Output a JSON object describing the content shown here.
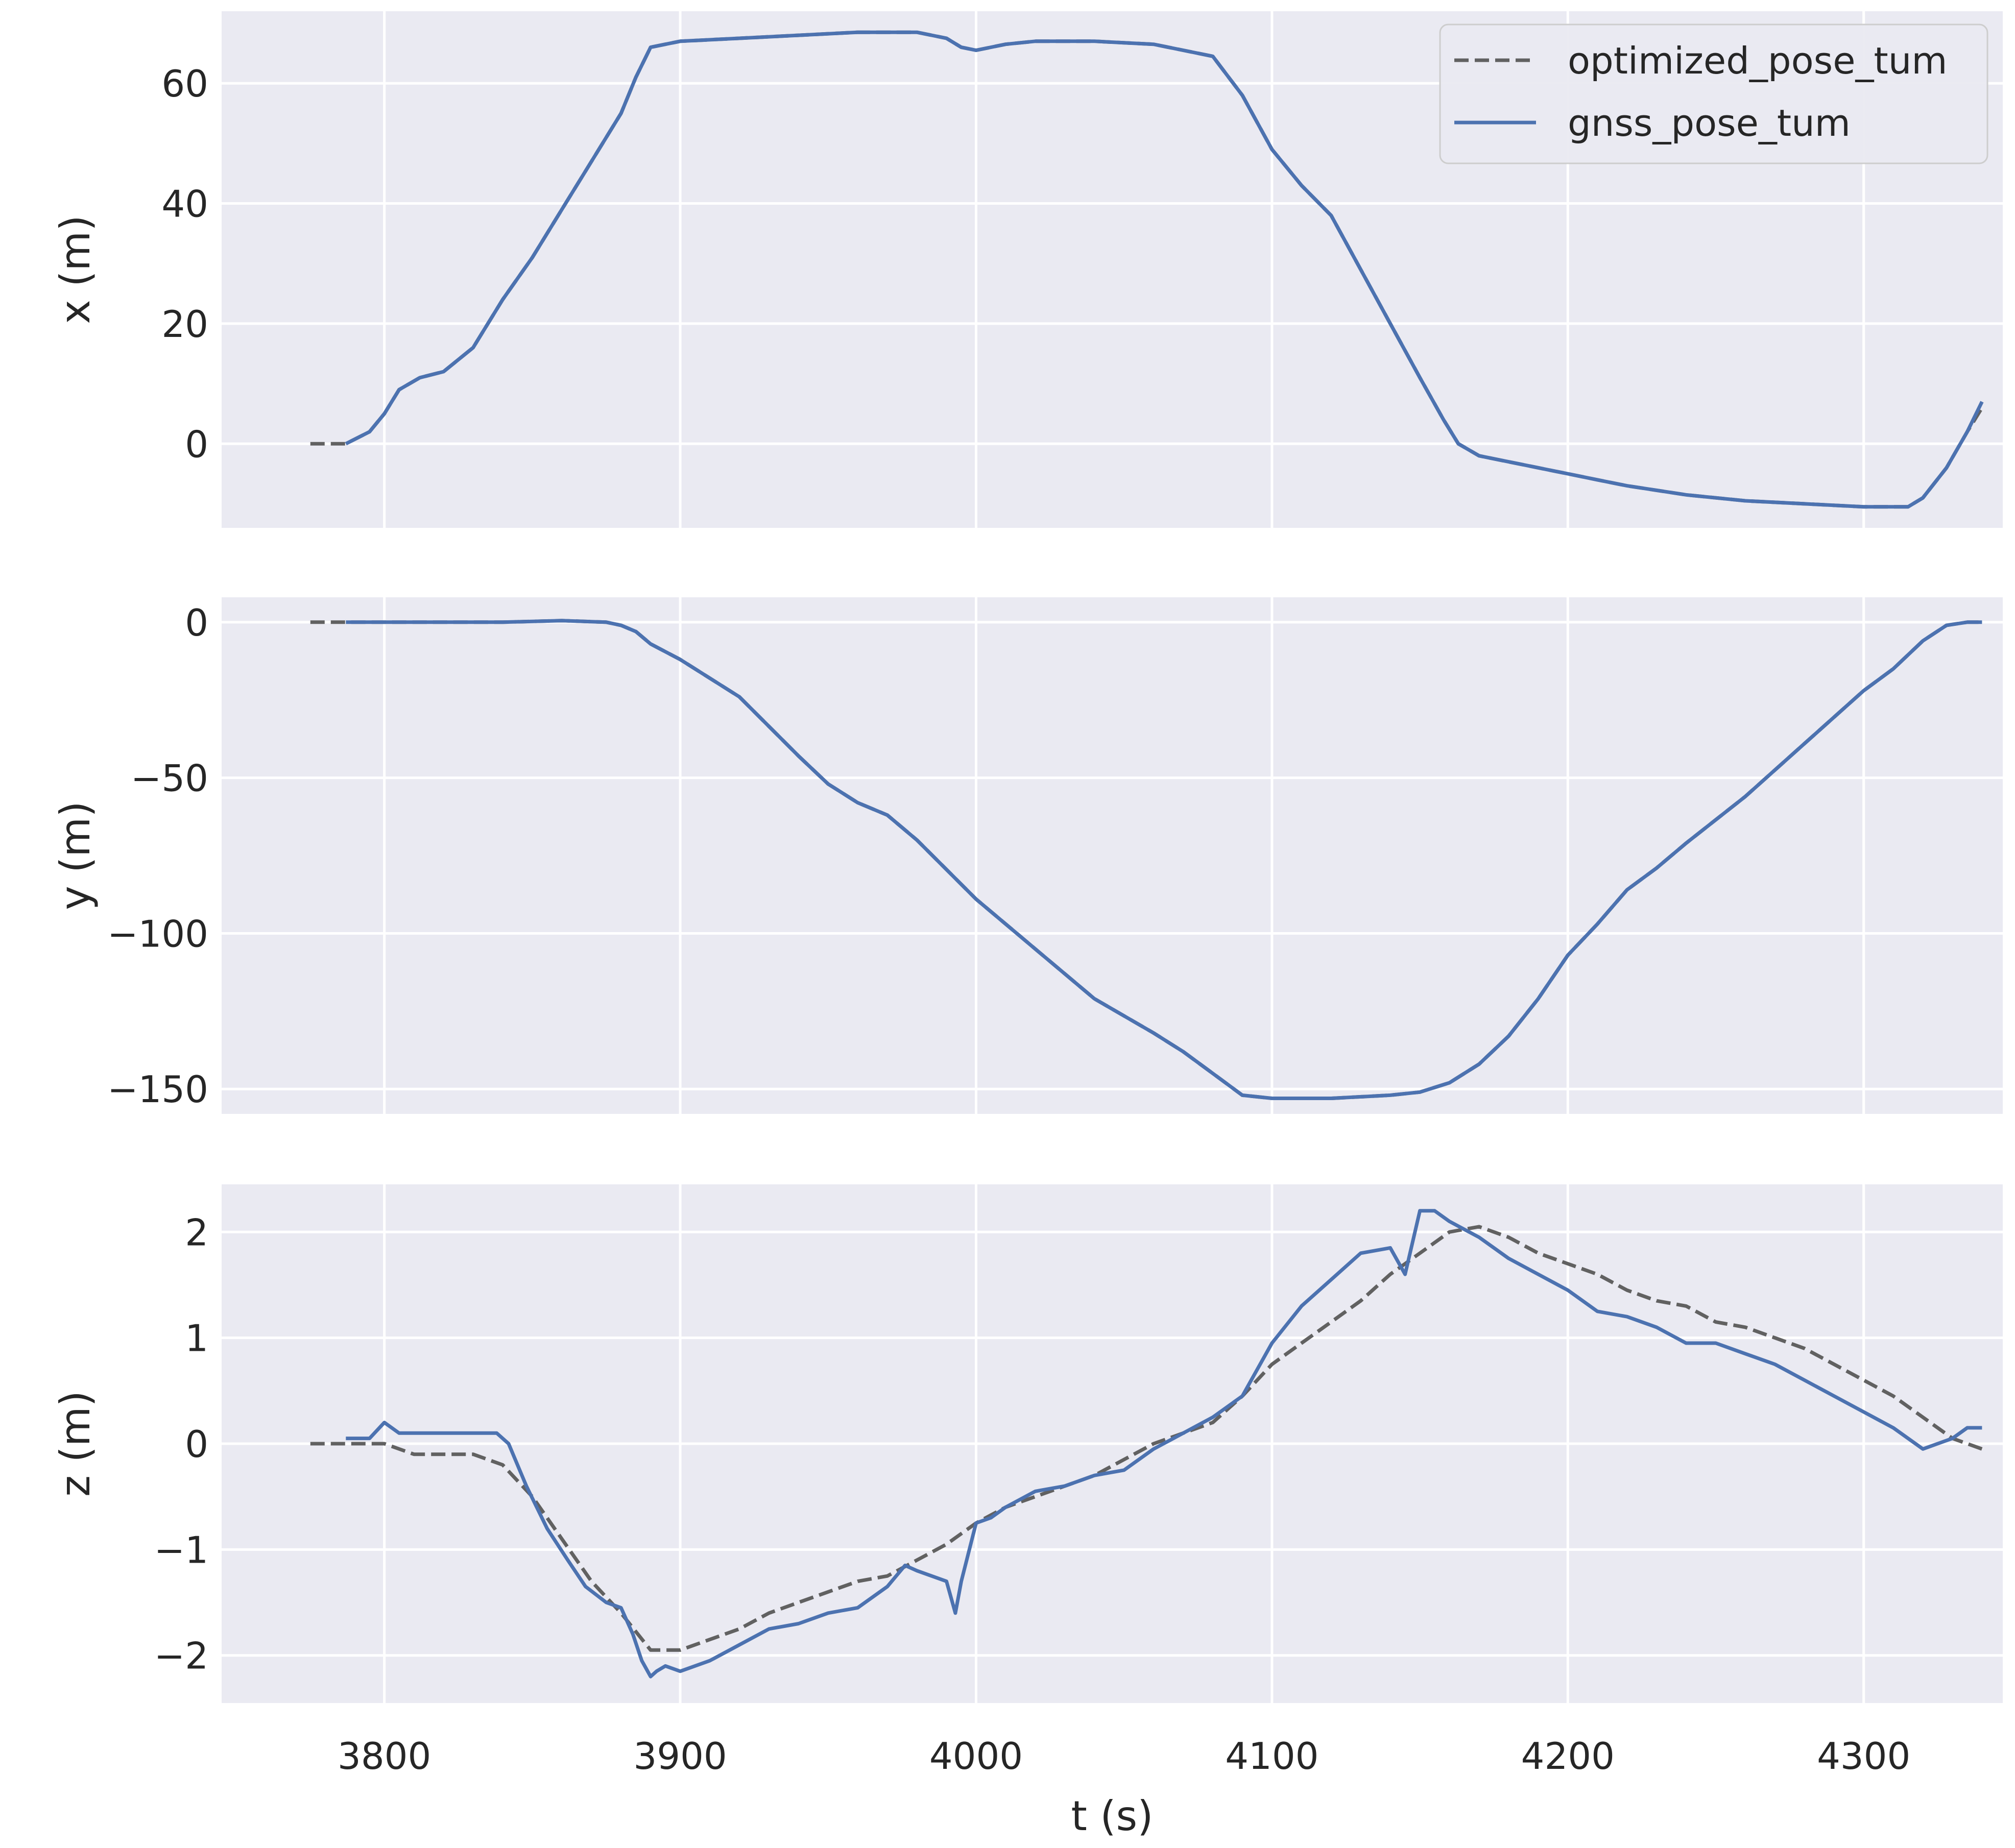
{
  "chart_data": {
    "type": "line",
    "xlabel": "t (s)",
    "xlim": [
      3745,
      4347
    ],
    "xticks": [
      3800,
      3900,
      4000,
      4100,
      4200,
      4300
    ],
    "grid": true,
    "legend": {
      "placement": "top-right",
      "panel": 0
    },
    "series_styles": [
      {
        "name": "optimized_pose_tum",
        "color": "#616161",
        "dash": "dashed"
      },
      {
        "name": "gnss_pose_tum",
        "color": "#4c72b0",
        "dash": "solid"
      }
    ],
    "panels": [
      {
        "ylabel": "x (m)",
        "ylim": [
          -14,
          72
        ],
        "yticks": [
          0,
          20,
          40,
          60
        ],
        "series": [
          {
            "name": "optimized_pose_tum",
            "x": [
              3775,
              3787,
              3795,
              3800,
              3805,
              3812,
              3820,
              3830,
              3840,
              3850,
              3860,
              3870,
              3880,
              3885,
              3890,
              3900,
              3920,
              3940,
              3960,
              3980,
              3990,
              3995,
              4000,
              4010,
              4020,
              4040,
              4060,
              4070,
              4080,
              4090,
              4100,
              4110,
              4120,
              4130,
              4140,
              4150,
              4158,
              4163,
              4170,
              4180,
              4190,
              4200,
              4210,
              4220,
              4240,
              4250,
              4260,
              4280,
              4300,
              4315,
              4320,
              4328,
              4335,
              4340
            ],
            "y": [
              0,
              0,
              2,
              5,
              9,
              11,
              12,
              16,
              24,
              31,
              39,
              47,
              55,
              61,
              66,
              67,
              67.5,
              68,
              68.5,
              68.5,
              67.5,
              66,
              65.5,
              66.5,
              67,
              67,
              66.5,
              65.5,
              64.5,
              58,
              49,
              43,
              38,
              29,
              20,
              11,
              4,
              0,
              -2,
              -3,
              -4,
              -5,
              -6,
              -7,
              -8.5,
              -9,
              -9.5,
              -10,
              -10.5,
              -10.5,
              -9,
              -4,
              2,
              6
            ]
          },
          {
            "name": "gnss_pose_tum",
            "x": [
              3787,
              3795,
              3800,
              3805,
              3812,
              3820,
              3830,
              3840,
              3850,
              3860,
              3870,
              3880,
              3885,
              3890,
              3900,
              3920,
              3940,
              3960,
              3980,
              3990,
              3995,
              4000,
              4010,
              4020,
              4040,
              4060,
              4070,
              4080,
              4090,
              4100,
              4110,
              4120,
              4130,
              4140,
              4150,
              4158,
              4163,
              4170,
              4180,
              4190,
              4200,
              4210,
              4220,
              4240,
              4250,
              4260,
              4280,
              4300,
              4315,
              4320,
              4328,
              4335,
              4340
            ],
            "y": [
              0,
              2,
              5,
              9,
              11,
              12,
              16,
              24,
              31,
              39,
              47,
              55,
              61,
              66,
              67,
              67.5,
              68,
              68.5,
              68.5,
              67.5,
              66,
              65.5,
              66.5,
              67,
              67,
              66.5,
              65.5,
              64.5,
              58,
              49,
              43,
              38,
              29,
              20,
              11,
              4,
              0,
              -2,
              -3,
              -4,
              -5,
              -6,
              -7,
              -8.5,
              -9,
              -9.5,
              -10,
              -10.5,
              -10.5,
              -9,
              -4,
              2,
              7
            ]
          }
        ]
      },
      {
        "ylabel": "y (m)",
        "ylim": [
          -158,
          8
        ],
        "yticks": [
          0,
          -50,
          -100,
          -150
        ],
        "series": [
          {
            "name": "optimized_pose_tum",
            "x": [
              3775,
              3787,
              3800,
              3820,
              3840,
              3860,
              3875,
              3880,
              3885,
              3890,
              3900,
              3920,
              3940,
              3950,
              3960,
              3970,
              3980,
              4000,
              4020,
              4040,
              4060,
              4070,
              4080,
              4090,
              4100,
              4120,
              4140,
              4150,
              4160,
              4170,
              4180,
              4190,
              4200,
              4210,
              4220,
              4230,
              4240,
              4260,
              4280,
              4300,
              4310,
              4320,
              4328,
              4335,
              4340
            ],
            "y": [
              0,
              0,
              0,
              0,
              0,
              0.5,
              0,
              -1,
              -3,
              -7,
              -12,
              -24,
              -43,
              -52,
              -58,
              -62,
              -70,
              -89,
              -105,
              -121,
              -132,
              -138,
              -145,
              -152,
              -153,
              -153,
              -152,
              -151,
              -148,
              -142,
              -133,
              -121,
              -107,
              -97,
              -86,
              -79,
              -71,
              -56,
              -39,
              -22,
              -15,
              -6,
              -1,
              0,
              0
            ]
          },
          {
            "name": "gnss_pose_tum",
            "x": [
              3787,
              3800,
              3820,
              3840,
              3860,
              3875,
              3880,
              3885,
              3890,
              3900,
              3920,
              3940,
              3950,
              3960,
              3970,
              3980,
              4000,
              4020,
              4040,
              4060,
              4070,
              4080,
              4090,
              4100,
              4120,
              4140,
              4150,
              4160,
              4170,
              4180,
              4190,
              4200,
              4210,
              4220,
              4230,
              4240,
              4260,
              4280,
              4300,
              4310,
              4320,
              4328,
              4335,
              4340
            ],
            "y": [
              0,
              0,
              0,
              0,
              0.5,
              0,
              -1,
              -3,
              -7,
              -12,
              -24,
              -43,
              -52,
              -58,
              -62,
              -70,
              -89,
              -105,
              -121,
              -132,
              -138,
              -145,
              -152,
              -153,
              -153,
              -152,
              -151,
              -148,
              -142,
              -133,
              -121,
              -107,
              -97,
              -86,
              -79,
              -71,
              -56,
              -39,
              -22,
              -15,
              -6,
              -1,
              0,
              0
            ]
          }
        ]
      },
      {
        "ylabel": "z (m)",
        "ylim": [
          -2.45,
          2.45
        ],
        "yticks": [
          2,
          1,
          0,
          -1,
          -2
        ],
        "series": [
          {
            "name": "optimized_pose_tum",
            "x": [
              3775,
              3790,
              3800,
              3810,
              3820,
              3830,
              3840,
              3850,
              3860,
              3870,
              3880,
              3890,
              3900,
              3910,
              3920,
              3930,
              3940,
              3950,
              3960,
              3970,
              3980,
              3990,
              4000,
              4010,
              4020,
              4040,
              4050,
              4060,
              4070,
              4080,
              4090,
              4100,
              4110,
              4120,
              4130,
              4140,
              4150,
              4160,
              4170,
              4180,
              4190,
              4200,
              4210,
              4220,
              4230,
              4240,
              4250,
              4260,
              4270,
              4280,
              4290,
              4300,
              4310,
              4320,
              4330,
              4340
            ],
            "y": [
              0,
              0,
              0,
              -0.1,
              -0.1,
              -0.1,
              -0.2,
              -0.5,
              -0.9,
              -1.3,
              -1.6,
              -1.95,
              -1.95,
              -1.85,
              -1.75,
              -1.6,
              -1.5,
              -1.4,
              -1.3,
              -1.25,
              -1.1,
              -0.95,
              -0.75,
              -0.6,
              -0.5,
              -0.3,
              -0.15,
              0,
              0.1,
              0.2,
              0.45,
              0.75,
              0.95,
              1.15,
              1.35,
              1.6,
              1.8,
              2.0,
              2.05,
              1.95,
              1.8,
              1.7,
              1.6,
              1.45,
              1.35,
              1.3,
              1.15,
              1.1,
              1.0,
              0.9,
              0.75,
              0.6,
              0.45,
              0.25,
              0.05,
              -0.05
            ]
          },
          {
            "name": "gnss_pose_tum",
            "x": [
              3787,
              3795,
              3800,
              3805,
              3810,
              3820,
              3830,
              3838,
              3842,
              3848,
              3855,
              3862,
              3868,
              3875,
              3880,
              3884,
              3887,
              3890,
              3892,
              3895,
              3900,
              3910,
              3920,
              3930,
              3940,
              3950,
              3960,
              3970,
              3976,
              3980,
              3990,
              3993,
              3995,
              4000,
              4005,
              4010,
              4020,
              4030,
              4040,
              4050,
              4060,
              4070,
              4080,
              4090,
              4100,
              4110,
              4120,
              4130,
              4140,
              4145,
              4150,
              4155,
              4160,
              4170,
              4180,
              4190,
              4200,
              4210,
              4220,
              4230,
              4240,
              4250,
              4260,
              4270,
              4280,
              4290,
              4300,
              4310,
              4320,
              4325,
              4330,
              4335,
              4340
            ],
            "y": [
              0.05,
              0.05,
              0.2,
              0.1,
              0.1,
              0.1,
              0.1,
              0.1,
              0,
              -0.4,
              -0.8,
              -1.1,
              -1.35,
              -1.5,
              -1.55,
              -1.8,
              -2.05,
              -2.2,
              -2.15,
              -2.1,
              -2.15,
              -2.05,
              -1.9,
              -1.75,
              -1.7,
              -1.6,
              -1.55,
              -1.35,
              -1.15,
              -1.2,
              -1.3,
              -1.6,
              -1.3,
              -0.75,
              -0.7,
              -0.6,
              -0.45,
              -0.4,
              -0.3,
              -0.25,
              -0.05,
              0.1,
              0.25,
              0.45,
              0.95,
              1.3,
              1.55,
              1.8,
              1.85,
              1.6,
              2.2,
              2.2,
              2.1,
              1.95,
              1.75,
              1.6,
              1.45,
              1.25,
              1.2,
              1.1,
              0.95,
              0.95,
              0.85,
              0.75,
              0.6,
              0.45,
              0.3,
              0.15,
              -0.05,
              0,
              0.05,
              0.15,
              0.15
            ]
          }
        ]
      }
    ]
  }
}
